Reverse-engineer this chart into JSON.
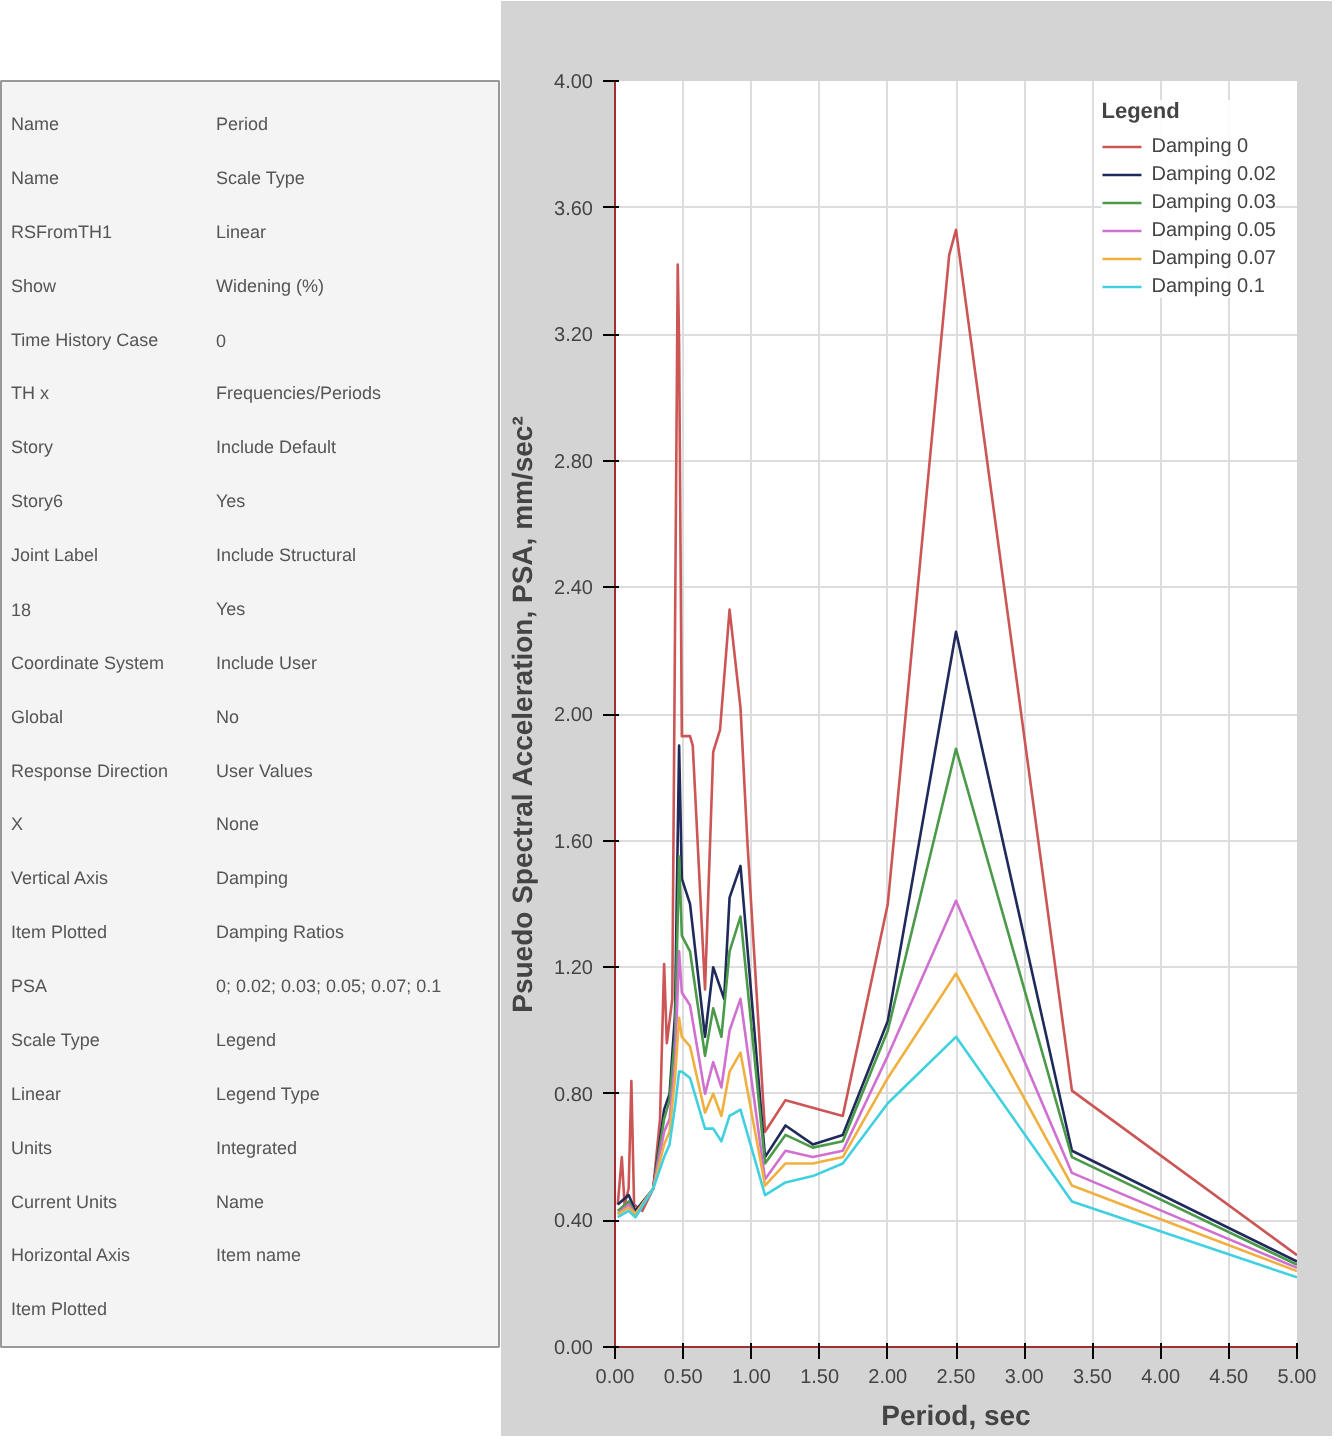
{
  "chart_data": [
    {
      "type": "other",
      "annotations": [
        "Name",
        "Name",
        "RSFromTH1",
        "Show",
        "Time History Case",
        "TH x",
        "Story",
        "Story6",
        "Joint Label",
        "18",
        "Coordinate System",
        "Global",
        "Response Direction",
        "X",
        "Vertical Axis",
        "Item Plotted",
        "PSA",
        "Scale Type",
        "Linear",
        "Units",
        "Current Units",
        "Horizontal Axis",
        "Item Plotted",
        "Period",
        "Scale Type",
        "Linear",
        "Widening (%)",
        "0",
        "Frequencies/Periods",
        "Include Default",
        "Yes",
        "Include Structural",
        "Yes",
        "Include User",
        "No",
        "User Values",
        "None",
        "Damping",
        "Damping Ratios",
        "0; 0.02; 0.03; 0.05; 0.07; 0.1",
        "Legend",
        "Legend Type",
        "Integrated",
        "Name",
        "Item name"
      ]
    },
    {
      "type": "line",
      "xlabel": "Period, sec",
      "ylabel": "Psuedo Spectral Acceleration, PSA, mm/sec²",
      "legend_title": "Legend",
      "legend": "top right",
      "grid": true,
      "xlim": [
        0,
        5
      ],
      "ylim": [
        0,
        4
      ],
      "xticks": [
        {
          "value": 0,
          "label": "0.00"
        },
        {
          "value": 0.5,
          "label": "0.50"
        },
        {
          "value": 1,
          "label": "1.00"
        },
        {
          "value": 1.5,
          "label": "1.50"
        },
        {
          "value": 2,
          "label": "2.00"
        },
        {
          "value": 2.5,
          "label": "2.50"
        },
        {
          "value": 3,
          "label": "3.00"
        },
        {
          "value": 3.5,
          "label": "3.50"
        },
        {
          "value": 4,
          "label": "4.00"
        },
        {
          "value": 4.5,
          "label": "4.50"
        },
        {
          "value": 5,
          "label": "5.00"
        }
      ],
      "yticks": [
        {
          "value": 0,
          "label": "0.00"
        },
        {
          "value": 0.4,
          "label": "0.40"
        },
        {
          "value": 0.8,
          "label": "0.80"
        },
        {
          "value": 1.2,
          "label": "1.20"
        },
        {
          "value": 1.6,
          "label": "1.60"
        },
        {
          "value": 2,
          "label": "2.00"
        },
        {
          "value": 2.4,
          "label": "2.40"
        },
        {
          "value": 2.8,
          "label": "2.80"
        },
        {
          "value": 3.2,
          "label": "3.20"
        },
        {
          "value": 3.6,
          "label": "3.60"
        },
        {
          "value": 4,
          "label": "4.00"
        }
      ],
      "series": [
        {
          "name": "Damping 0",
          "color": "#cc5555",
          "x": [
            0.02,
            0.05,
            0.07,
            0.1,
            0.12,
            0.14,
            0.2,
            0.28,
            0.33,
            0.36,
            0.38,
            0.42,
            0.46,
            0.47,
            0.49,
            0.55,
            0.57,
            0.66,
            0.72,
            0.77,
            0.84,
            0.92,
            0.97,
            1.1,
            1.25,
            1.67,
            2.0,
            2.45,
            2.5,
            3.35,
            5.0
          ],
          "values": [
            0.45,
            0.6,
            0.45,
            0.5,
            0.84,
            0.45,
            0.43,
            0.5,
            0.72,
            1.21,
            0.96,
            1.1,
            3.42,
            3.17,
            1.93,
            1.93,
            1.9,
            1.13,
            1.88,
            1.95,
            2.33,
            2.02,
            1.6,
            0.68,
            0.78,
            0.73,
            1.4,
            3.45,
            3.53,
            0.81,
            0.29
          ]
        },
        {
          "name": "Damping 0.02",
          "color": "#1f2a5a",
          "x": [
            0.02,
            0.1,
            0.15,
            0.28,
            0.36,
            0.4,
            0.44,
            0.47,
            0.49,
            0.55,
            0.66,
            0.72,
            0.8,
            0.84,
            0.92,
            1.1,
            1.25,
            1.45,
            1.67,
            2.0,
            2.5,
            3.35,
            5.0
          ],
          "values": [
            0.45,
            0.48,
            0.43,
            0.5,
            0.75,
            0.8,
            1.05,
            1.9,
            1.48,
            1.4,
            0.98,
            1.2,
            1.1,
            1.42,
            1.52,
            0.6,
            0.7,
            0.64,
            0.67,
            1.03,
            2.26,
            0.62,
            0.27
          ]
        },
        {
          "name": "Damping 0.03",
          "color": "#4a9a4a",
          "x": [
            0.02,
            0.1,
            0.15,
            0.28,
            0.36,
            0.4,
            0.44,
            0.47,
            0.49,
            0.55,
            0.66,
            0.72,
            0.78,
            0.84,
            0.92,
            1.1,
            1.25,
            1.45,
            1.67,
            2.0,
            2.5,
            3.35,
            5.0
          ],
          "values": [
            0.43,
            0.46,
            0.42,
            0.5,
            0.72,
            0.78,
            0.98,
            1.55,
            1.3,
            1.25,
            0.92,
            1.07,
            0.98,
            1.25,
            1.36,
            0.58,
            0.67,
            0.63,
            0.65,
            1.0,
            1.89,
            0.6,
            0.26
          ]
        },
        {
          "name": "Damping 0.05",
          "color": "#d070d0",
          "x": [
            0.02,
            0.1,
            0.15,
            0.28,
            0.36,
            0.4,
            0.44,
            0.47,
            0.49,
            0.55,
            0.66,
            0.72,
            0.78,
            0.84,
            0.92,
            1.1,
            1.25,
            1.45,
            1.67,
            2.0,
            2.5,
            3.35,
            5.0
          ],
          "values": [
            0.42,
            0.45,
            0.42,
            0.5,
            0.68,
            0.72,
            0.9,
            1.25,
            1.12,
            1.08,
            0.8,
            0.9,
            0.82,
            1.0,
            1.1,
            0.53,
            0.62,
            0.6,
            0.62,
            0.92,
            1.41,
            0.55,
            0.25
          ]
        },
        {
          "name": "Damping 0.07",
          "color": "#f0b040",
          "x": [
            0.02,
            0.1,
            0.15,
            0.28,
            0.36,
            0.4,
            0.44,
            0.47,
            0.49,
            0.55,
            0.66,
            0.72,
            0.78,
            0.84,
            0.92,
            1.1,
            1.25,
            1.45,
            1.67,
            2.0,
            2.5,
            3.35,
            5.0
          ],
          "values": [
            0.42,
            0.44,
            0.42,
            0.5,
            0.64,
            0.68,
            0.85,
            1.04,
            0.98,
            0.95,
            0.74,
            0.8,
            0.73,
            0.87,
            0.93,
            0.51,
            0.58,
            0.58,
            0.6,
            0.85,
            1.18,
            0.51,
            0.24
          ]
        },
        {
          "name": "Damping 0.1",
          "color": "#40d0e0",
          "x": [
            0.02,
            0.1,
            0.15,
            0.28,
            0.36,
            0.4,
            0.44,
            0.47,
            0.49,
            0.55,
            0.66,
            0.72,
            0.78,
            0.84,
            0.92,
            1.1,
            1.25,
            1.45,
            1.67,
            2.0,
            2.5,
            3.35,
            5.0
          ],
          "values": [
            0.41,
            0.43,
            0.41,
            0.5,
            0.6,
            0.64,
            0.76,
            0.87,
            0.87,
            0.85,
            0.69,
            0.69,
            0.65,
            0.73,
            0.75,
            0.48,
            0.52,
            0.54,
            0.58,
            0.77,
            0.98,
            0.46,
            0.22
          ]
        }
      ]
    }
  ]
}
